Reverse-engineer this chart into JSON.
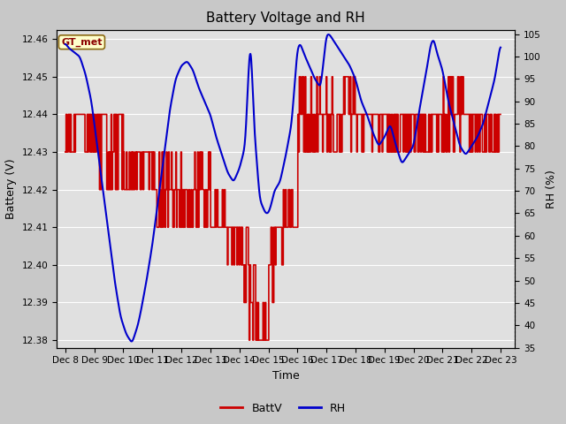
{
  "title": "Battery Voltage and RH",
  "xlabel": "Time",
  "ylabel_left": "Battery (V)",
  "ylabel_right": "RH (%)",
  "ylim_left": [
    12.378,
    12.4625
  ],
  "ylim_right": [
    35,
    106
  ],
  "yticks_left": [
    12.38,
    12.39,
    12.4,
    12.41,
    12.42,
    12.43,
    12.44,
    12.45,
    12.46
  ],
  "yticks_right": [
    35,
    40,
    45,
    50,
    55,
    60,
    65,
    70,
    75,
    80,
    85,
    90,
    95,
    100,
    105
  ],
  "label_station": "GT_met",
  "legend_battv": "BattV",
  "legend_rh": "RH",
  "fig_bg_color": "#c8c8c8",
  "plot_bg_color": "#e0e0e0",
  "battv_color": "#cc0000",
  "rh_color": "#0000cc",
  "battv_linewidth": 1.2,
  "rh_linewidth": 1.5,
  "title_fontsize": 11,
  "axis_fontsize": 9,
  "tick_fontsize": 7.5,
  "day_ticks": [
    0,
    1,
    2,
    3,
    4,
    5,
    6,
    7,
    8,
    9,
    10,
    11,
    12,
    13,
    14,
    15
  ],
  "day_labels": [
    "Dec 8",
    "Dec 9",
    "Dec 10",
    "Dec 11",
    "Dec 12",
    "Dec 13",
    "Dec 14",
    "Dec 15",
    "Dec 16",
    "Dec 17",
    "Dec 18",
    "Dec 19",
    "Dec 20",
    "Dec 21",
    "Dec 22",
    "Dec 23"
  ]
}
